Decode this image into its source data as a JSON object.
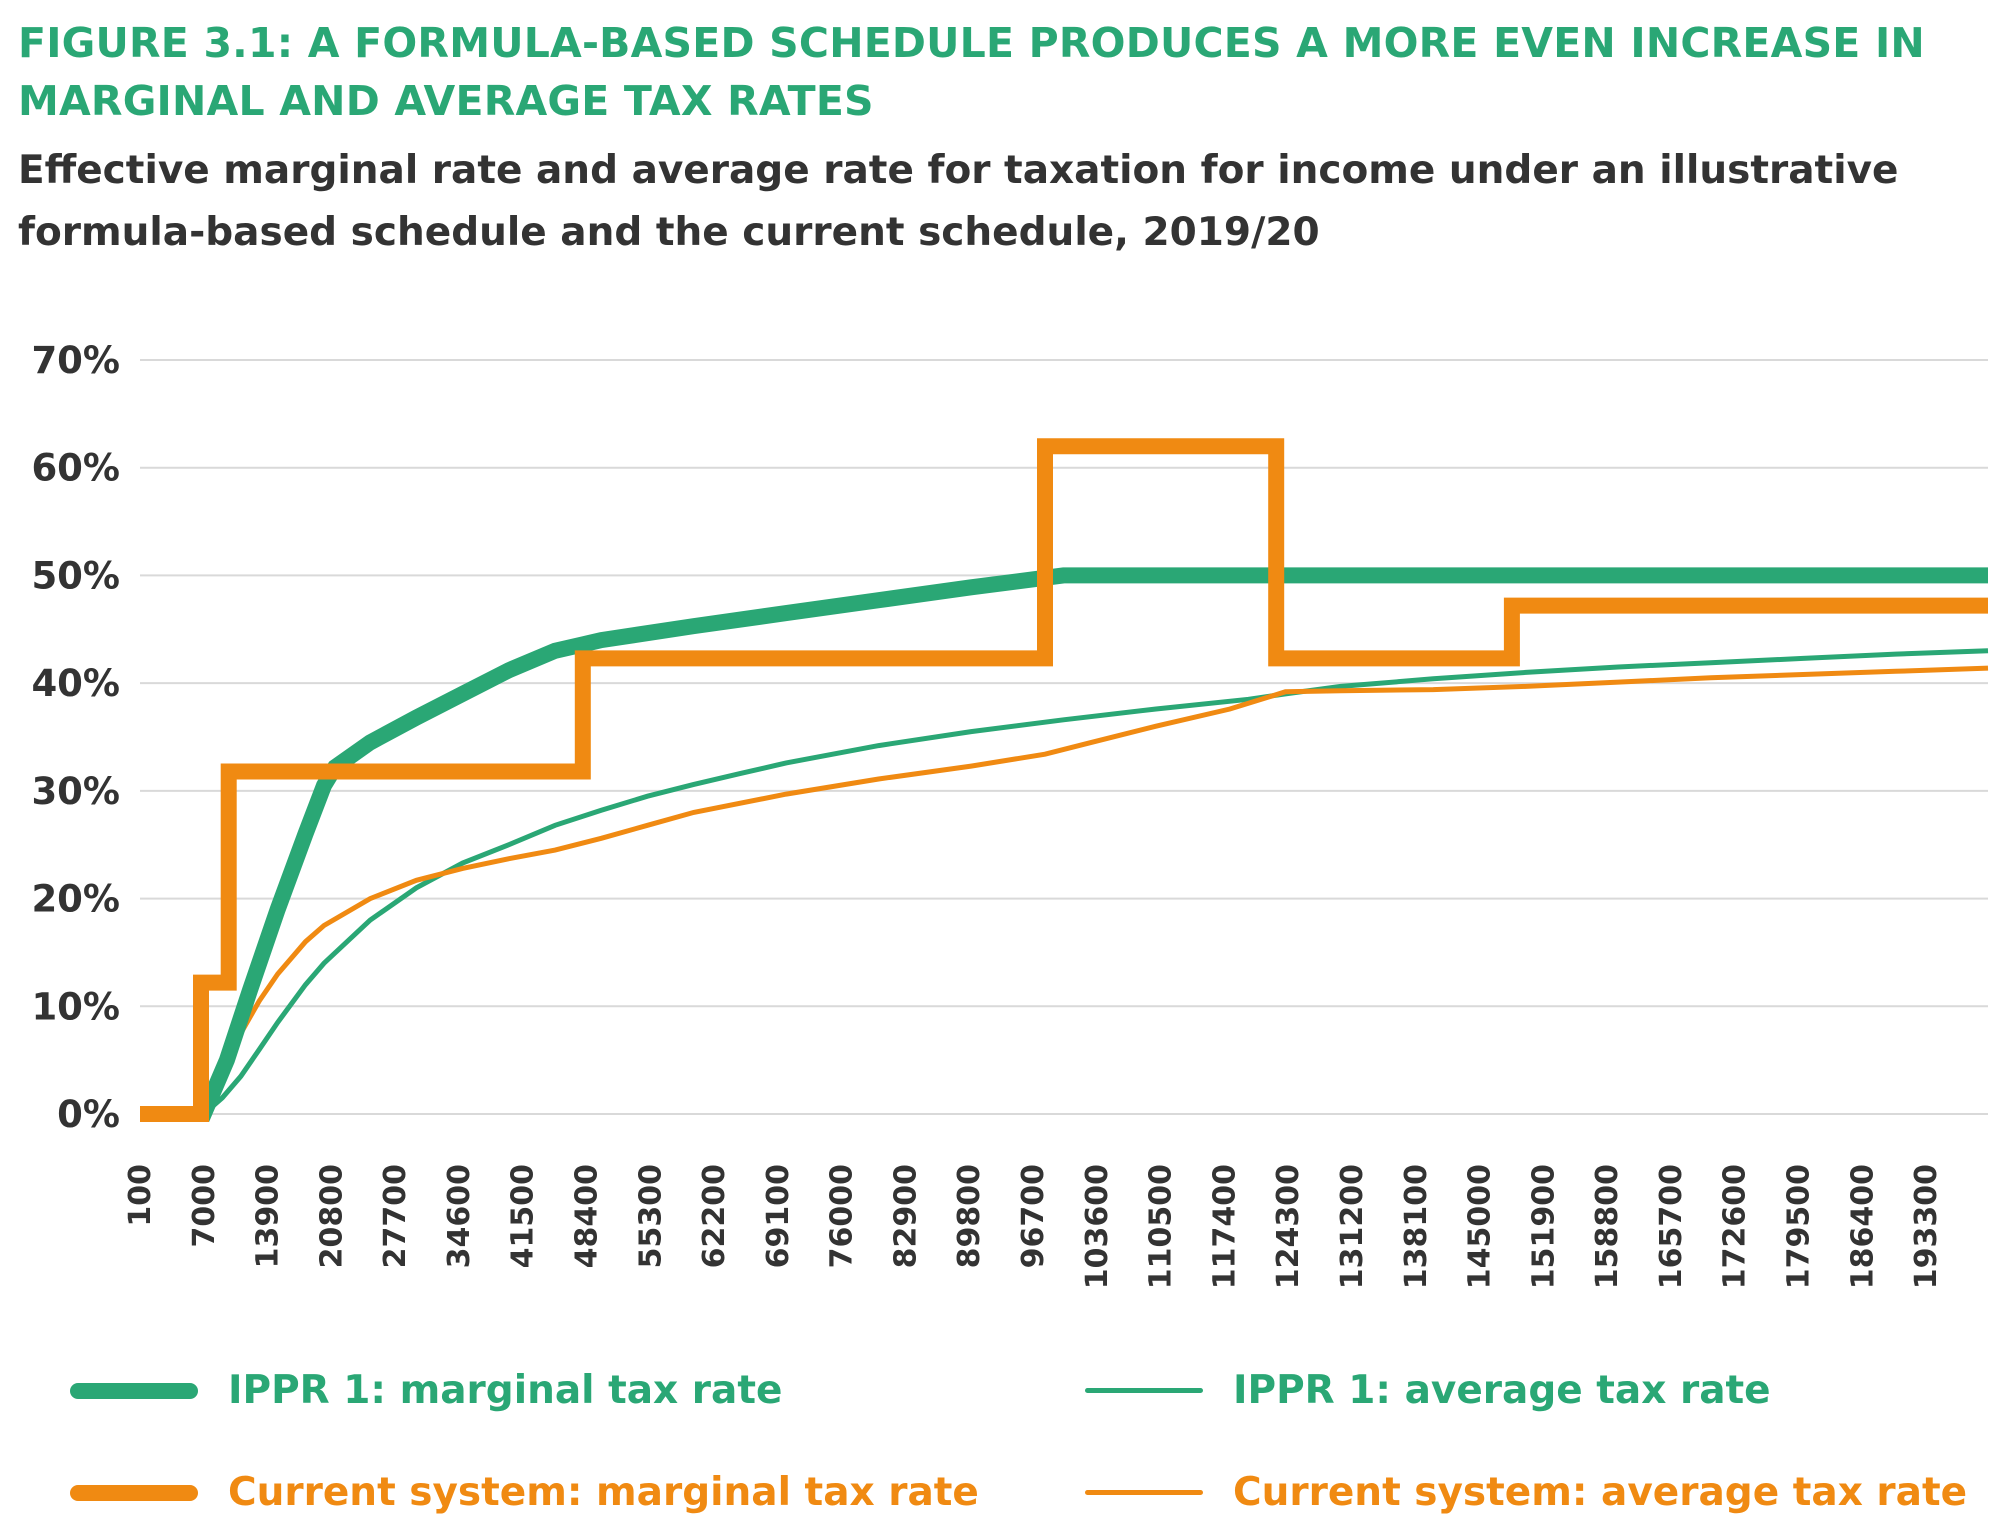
{
  "figure": {
    "heading": "FIGURE 3.1: A FORMULA-BASED SCHEDULE PRODUCES A MORE EVEN INCREASE IN MARGINAL AND AVERAGE TAX RATES",
    "subtitle": "Effective marginal rate and average rate for taxation for income under an illustrative formula-based schedule and the current schedule, 2019/20"
  },
  "colors": {
    "green": "#2aa775",
    "orange": "#f08a12",
    "grid": "#d9d9d9",
    "text": "#333333"
  },
  "chart_data": {
    "type": "line",
    "title": "FIGURE 3.1: A FORMULA-BASED SCHEDULE PRODUCES A MORE EVEN INCREASE IN MARGINAL AND AVERAGE TAX RATES",
    "subtitle": "Effective marginal rate and average rate for taxation for income under an illustrative formula-based schedule and the current schedule, 2019/20",
    "xlabel": "",
    "ylabel": "",
    "xlim": [
      100,
      200000
    ],
    "ylim": [
      0,
      70
    ],
    "y_ticks": [
      "0%",
      "10%",
      "20%",
      "30%",
      "40%",
      "50%",
      "60%",
      "70%"
    ],
    "x_ticks": [
      "100",
      "7000",
      "13900",
      "20800",
      "27700",
      "34600",
      "41500",
      "48400",
      "55300",
      "62200",
      "69100",
      "76000",
      "82900",
      "89800",
      "96700",
      "103600",
      "110500",
      "117400",
      "124300",
      "131200",
      "138100",
      "145000",
      "151900",
      "158800",
      "165700",
      "172600",
      "179500",
      "186400",
      "193300"
    ],
    "grid": "horizontal",
    "legend_position": "bottom",
    "series": [
      {
        "name": "IPPR 1: marginal tax rate",
        "color": "#2aa775",
        "style": "thick",
        "x": [
          100,
          7000,
          9500,
          12000,
          15000,
          18000,
          20000,
          21200,
          25000,
          30000,
          35000,
          40000,
          45000,
          48000,
          50000,
          60000,
          70000,
          80000,
          90000,
          100000,
          110000,
          150000,
          200000
        ],
        "y": [
          0,
          0,
          5,
          11.5,
          19,
          26,
          30.5,
          32.2,
          34.5,
          36.8,
          39,
          41.2,
          43,
          43.6,
          44,
          45.3,
          46.5,
          47.7,
          48.9,
          50,
          50,
          50,
          50
        ]
      },
      {
        "name": "IPPR 1: average tax rate",
        "color": "#2aa775",
        "style": "thin",
        "x": [
          100,
          7000,
          9000,
          11000,
          13000,
          15000,
          18000,
          20000,
          25000,
          30000,
          35000,
          40000,
          45000,
          50000,
          55000,
          60000,
          65000,
          70000,
          80000,
          90000,
          100000,
          110000,
          120000,
          124000,
          130000,
          140000,
          150000,
          160000,
          170000,
          180000,
          190000,
          200000
        ],
        "y": [
          0,
          0,
          1.5,
          3.5,
          6,
          8.5,
          12,
          14,
          18,
          21,
          23.3,
          25,
          26.8,
          28.2,
          29.5,
          30.6,
          31.6,
          32.6,
          34.2,
          35.5,
          36.6,
          37.6,
          38.5,
          39,
          39.7,
          40.4,
          41,
          41.5,
          41.9,
          42.3,
          42.7,
          43
        ]
      },
      {
        "name": "Current system: marginal tax rate",
        "color": "#f08a12",
        "style": "thick",
        "x": [
          100,
          6700,
          6700,
          9700,
          9700,
          48000,
          48000,
          98000,
          98000,
          123000,
          123000,
          148500,
          148500,
          200000
        ],
        "y": [
          0,
          0,
          12.2,
          12.2,
          31.8,
          31.8,
          42.3,
          42.3,
          62,
          62,
          42.3,
          42.3,
          47.2,
          47.2
        ]
      },
      {
        "name": "Current system: average tax rate",
        "color": "#f08a12",
        "style": "thin",
        "x": [
          100,
          7000,
          9000,
          11000,
          13000,
          15000,
          18000,
          20000,
          25000,
          30000,
          35000,
          40000,
          45000,
          50000,
          55000,
          60000,
          70000,
          80000,
          90000,
          98000,
          103000,
          110000,
          118000,
          124000,
          130000,
          140000,
          150000,
          160000,
          170000,
          180000,
          190000,
          200000
        ],
        "y": [
          0,
          0,
          3,
          7.5,
          10.5,
          13,
          16,
          17.5,
          20,
          21.7,
          22.8,
          23.7,
          24.5,
          25.6,
          26.8,
          28,
          29.7,
          31.1,
          32.3,
          33.4,
          34.5,
          36,
          37.6,
          39.2,
          39.3,
          39.4,
          39.7,
          40.1,
          40.5,
          40.8,
          41.1,
          41.4
        ]
      }
    ]
  },
  "legend": {
    "ippr_marginal": "IPPR 1: marginal tax rate",
    "ippr_average": "IPPR 1: average tax rate",
    "current_marginal": "Current system: marginal tax rate",
    "current_average": "Current system: average tax rate"
  }
}
